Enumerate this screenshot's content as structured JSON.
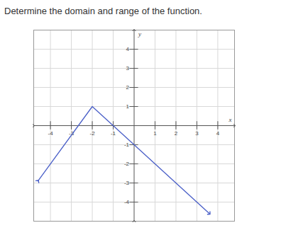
{
  "chart_data": {
    "type": "line",
    "title": "Determine the domain and range of the function.",
    "x_label": "x",
    "y_label": "y",
    "x": [
      -4.6,
      -2,
      3.6
    ],
    "values": [
      -2.9,
      1,
      -4.6
    ],
    "color": "#4a5fc8",
    "marker": "arrow",
    "xlim": [
      -4.8,
      4.8
    ],
    "ylim": [
      -5,
      5
    ],
    "xticks": [
      -4,
      -3,
      -2,
      -1,
      1,
      2,
      3,
      4
    ],
    "yticks": [
      -4,
      -3,
      -2,
      -1,
      1,
      2,
      3,
      4
    ],
    "grid": true
  }
}
